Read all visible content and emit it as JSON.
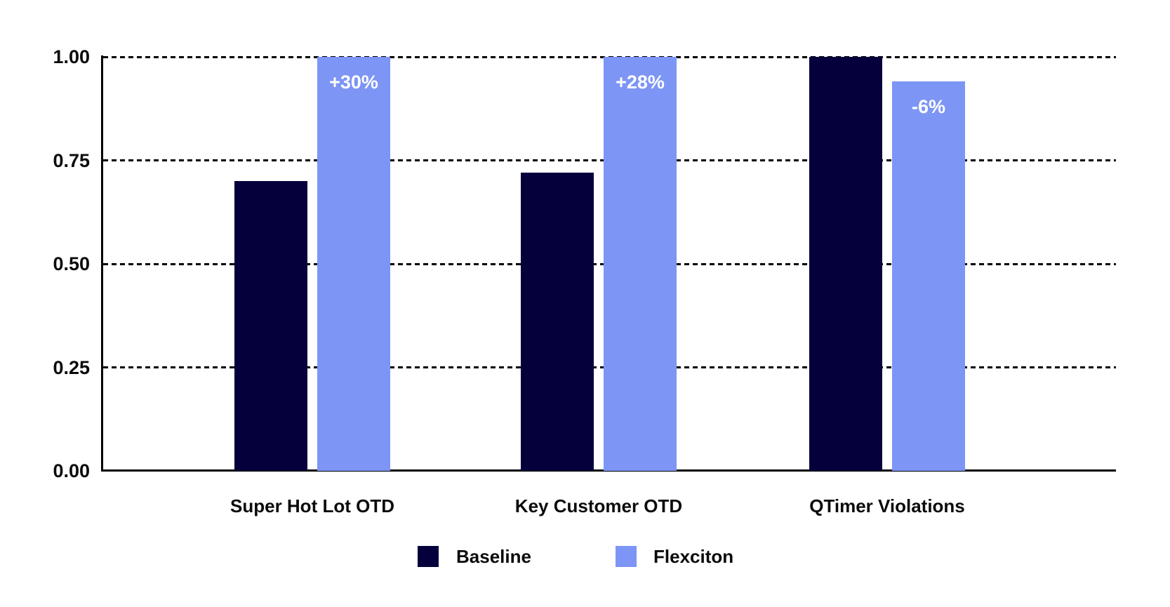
{
  "chart_data": {
    "type": "bar",
    "title": "",
    "xlabel": "",
    "ylabel": "",
    "categories": [
      "Super Hot Lot OTD",
      "Key Customer OTD",
      "QTimer Violations"
    ],
    "series": [
      {
        "name": "Baseline",
        "color": "#05003C",
        "values": [
          0.7,
          0.72,
          1.0
        ]
      },
      {
        "name": "Flexciton",
        "color": "#7D95F5",
        "values": [
          1.0,
          1.0,
          0.94
        ]
      }
    ],
    "bar_labels": {
      "on_series": "Flexciton",
      "values": [
        "+30%",
        "+28%",
        "-6%"
      ],
      "color": "#FFFFFF"
    },
    "yticks": [
      "1.00",
      "0.75",
      "0.50",
      "0.25",
      "0.00"
    ],
    "ytick_values": [
      1.0,
      0.75,
      0.5,
      0.25,
      0.0
    ],
    "ylim": [
      0,
      1.0
    ],
    "grid": "horizontal dashed lines at 0.25 intervals",
    "legend_position": "bottom",
    "axis_color": "#000000",
    "text_color": "#0B0B0B",
    "background": "#FFFFFF"
  }
}
